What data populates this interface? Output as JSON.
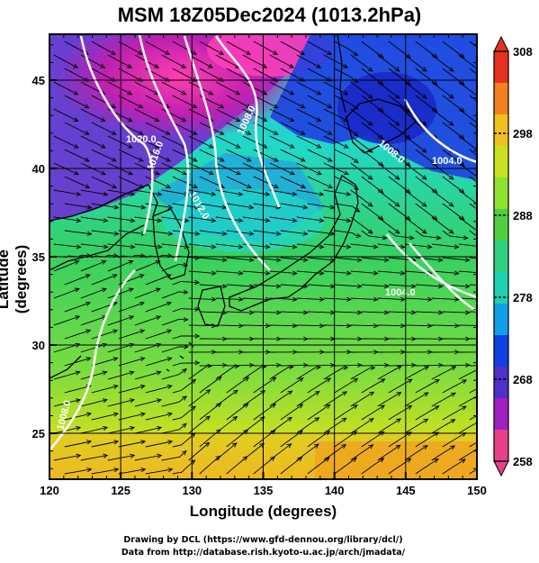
{
  "title": "MSM 18Z05Dec2024 (1013.2hPa)",
  "xlabel": "Longitude (degrees)",
  "ylabel": "Latitude  (degrees)",
  "credits": [
    "Drawing by DCL (https://www.gfd-dennou.org/library/dcl/)",
    "Data from http://database.rish.kyoto-u.ac.jp/arch/jmadata/"
  ],
  "axes": {
    "x_range": [
      120,
      150
    ],
    "y_range": [
      22.4,
      47.6
    ],
    "x_ticks": [
      "120",
      "125",
      "130",
      "135",
      "140",
      "145",
      "150"
    ],
    "y_ticks": [
      "25",
      "30",
      "35",
      "40",
      "45"
    ]
  },
  "colorbar": {
    "unit_hint": "K",
    "range": [
      258,
      308
    ],
    "tick_labels": [
      "308",
      "298",
      "288",
      "278",
      "268",
      "258"
    ],
    "colors": [
      "#e8408a",
      "#a020c0",
      "#5030c8",
      "#1040e0",
      "#10a0e8",
      "#20d0b0",
      "#30d080",
      "#50d040",
      "#90e030",
      "#c8e020",
      "#f0c020",
      "#f08020",
      "#e83020"
    ]
  },
  "contour_labels": [
    "1020.0",
    "1016.0",
    "1012.0",
    "1008.0",
    "1008.0",
    "1004.0",
    "1004.0",
    "1008.0"
  ],
  "colors": {
    "cold_pink": "#e8409a",
    "cold_blue": "#1a3ed8",
    "cyan": "#20d8c8",
    "green": "#38d058",
    "yellow": "#f0c020",
    "contour": "#ffffff",
    "land_outline": "#000000"
  }
}
